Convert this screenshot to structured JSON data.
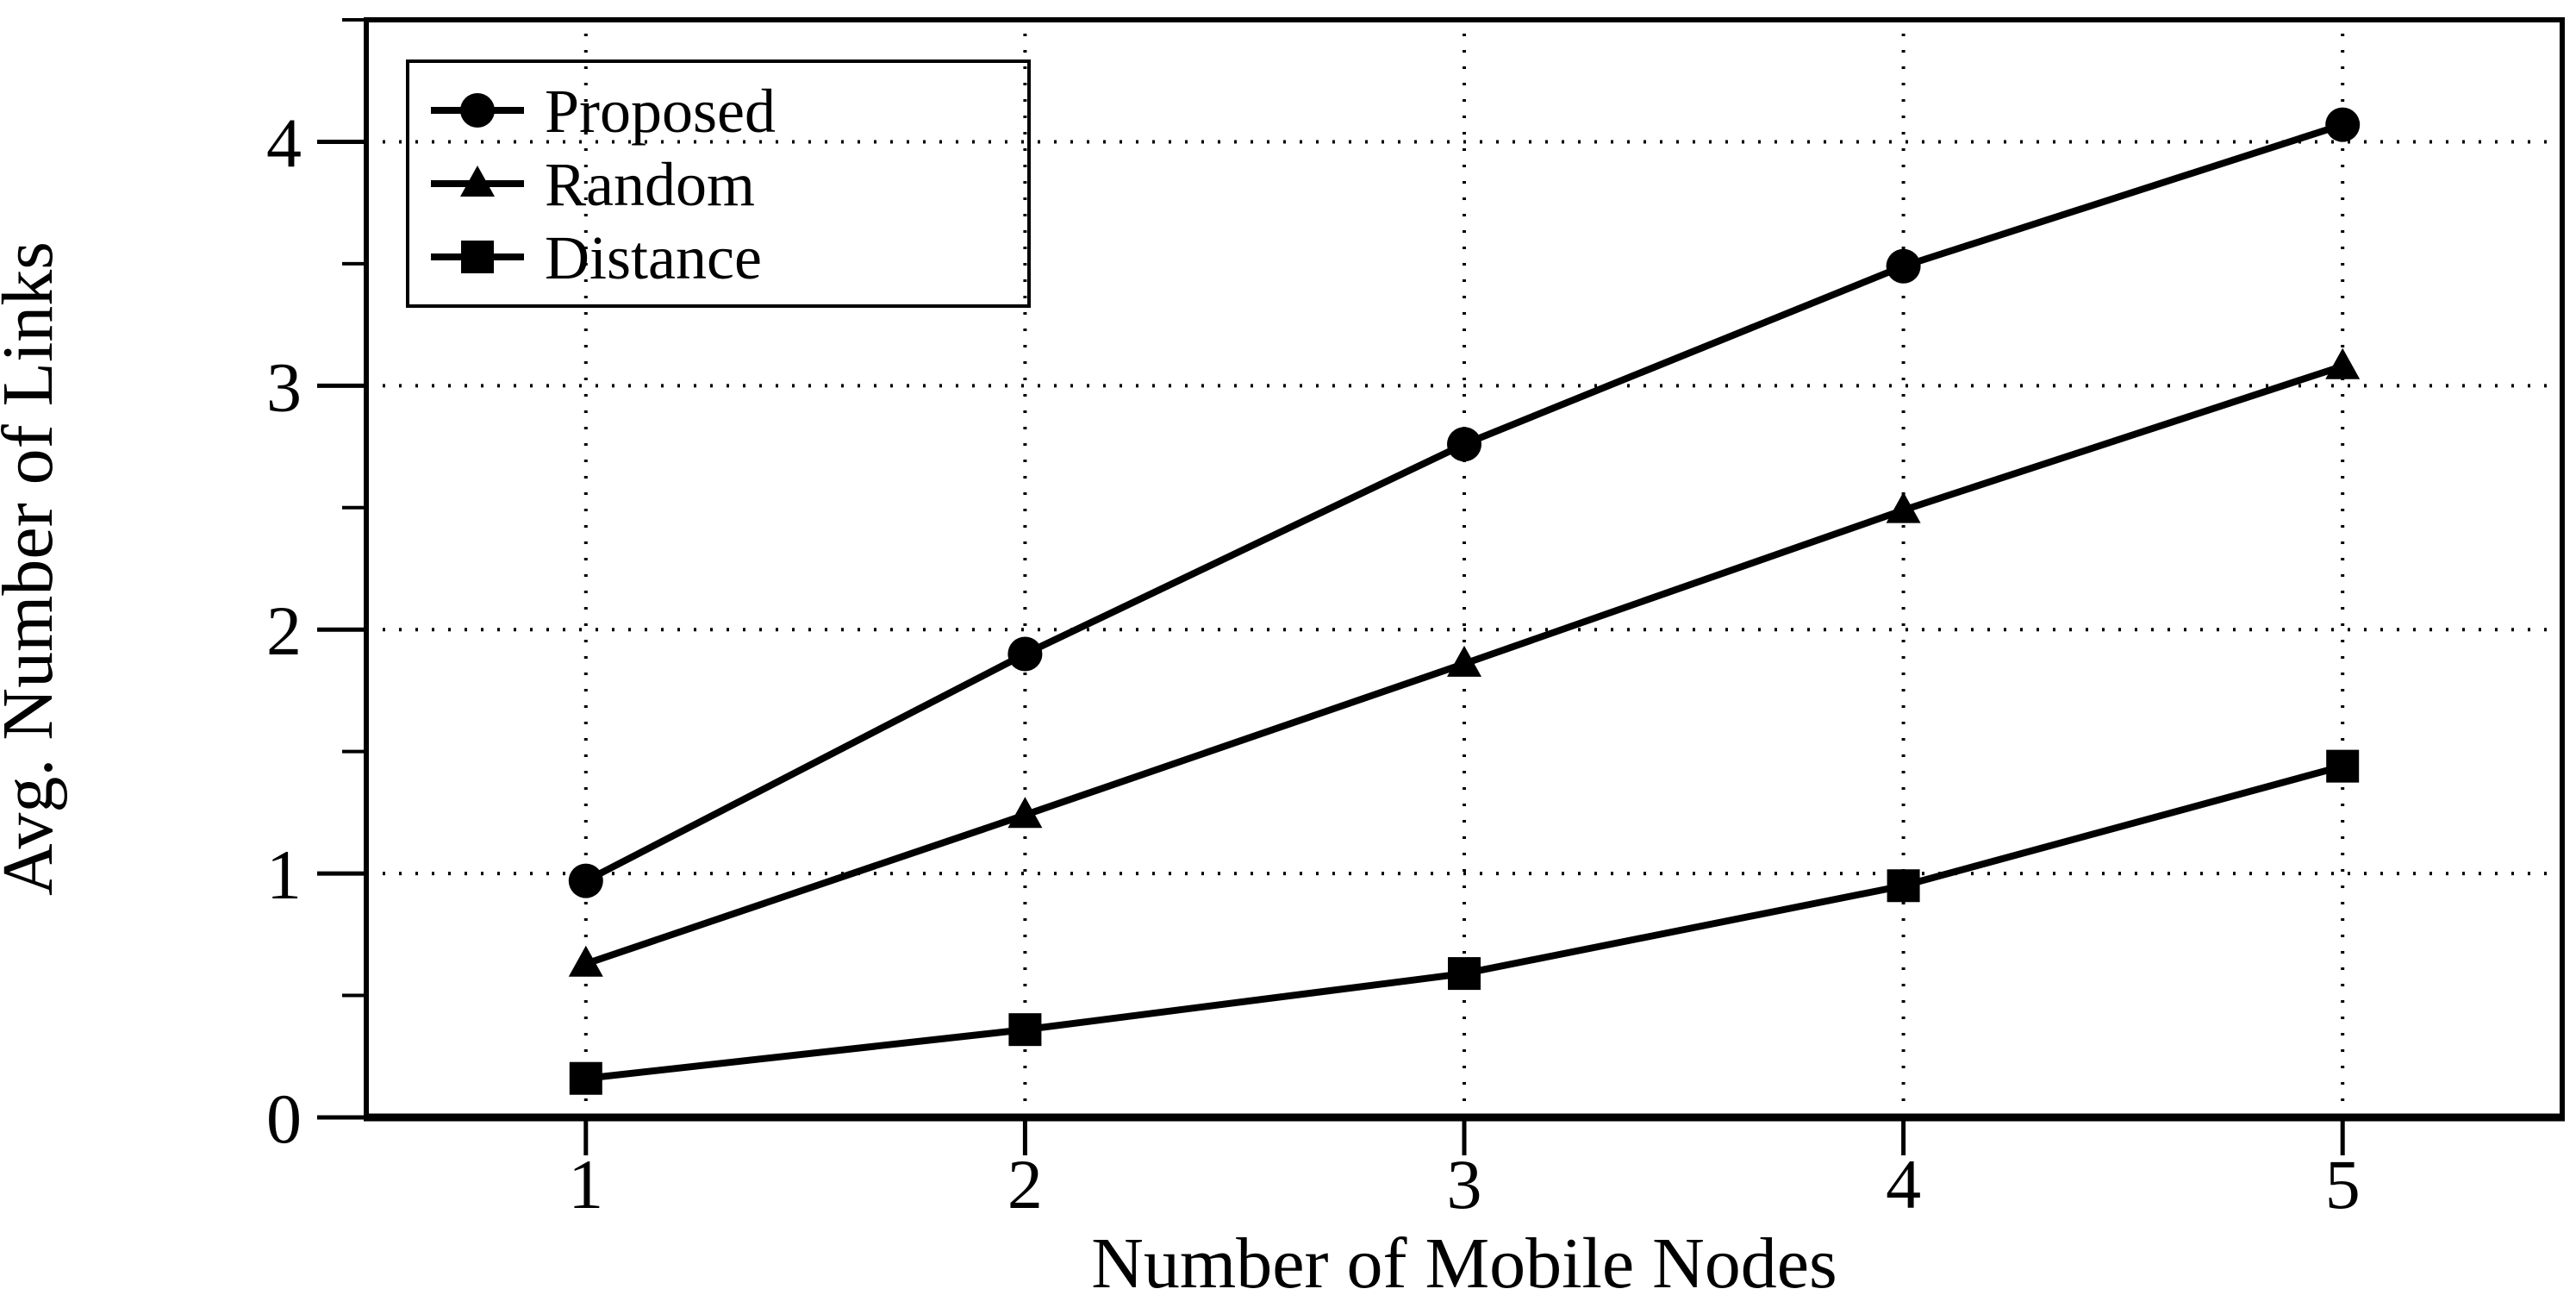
{
  "chart_data": {
    "type": "line",
    "title": "",
    "xlabel": "Number of Mobile Nodes",
    "ylabel": "Avg. Number of Links",
    "x": [
      1,
      2,
      3,
      4,
      5
    ],
    "series": [
      {
        "name": "Proposed",
        "marker": "circle",
        "values": [
          0.97,
          1.9,
          2.76,
          3.49,
          4.07
        ]
      },
      {
        "name": "Random",
        "marker": "triangle",
        "values": [
          0.63,
          1.24,
          1.86,
          2.49,
          3.08
        ]
      },
      {
        "name": "Distance",
        "marker": "square",
        "values": [
          0.16,
          0.36,
          0.59,
          0.95,
          1.44
        ]
      }
    ],
    "xlim": [
      0.5,
      5.5
    ],
    "ylim": [
      0,
      4.5
    ],
    "xticks": [
      1,
      2,
      3,
      4,
      5
    ],
    "xtick_labels": [
      "1",
      "2",
      "3",
      "4",
      "5"
    ],
    "yticks": [
      0,
      1,
      2,
      3,
      4
    ],
    "ytick_labels": [
      "0",
      "1",
      "2",
      "3",
      "4"
    ],
    "y_minor_ticks": [
      0.5,
      1.5,
      2.5,
      3.5,
      4.5
    ],
    "grid": "dotted",
    "legend_position": "top-left",
    "line_color": "#000000",
    "background_color": "#ffffff"
  }
}
